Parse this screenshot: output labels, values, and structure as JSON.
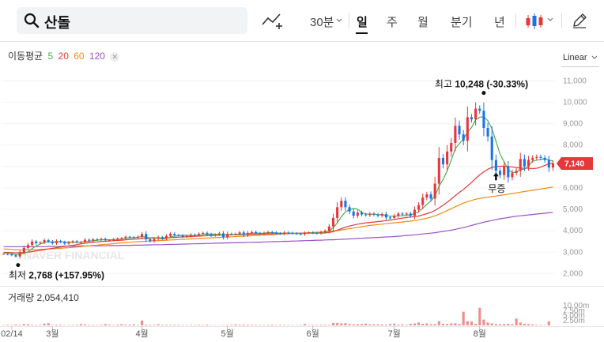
{
  "search": {
    "query": "산돌"
  },
  "periods": [
    "30분",
    "일",
    "주",
    "월",
    "분기",
    "년"
  ],
  "active_period": "일",
  "ma_legend": {
    "label": "이동평균",
    "periods": [
      "5",
      "20",
      "60",
      "120"
    ]
  },
  "colors": {
    "up": "#e5383b",
    "down": "#1a73e8",
    "ma5": "#4caf50",
    "ma20": "#e53935",
    "ma60": "#ef8a17",
    "ma120": "#9c4fc7",
    "volume": "#f28b8b",
    "badge": "#e5383b"
  },
  "scale_label": "Linear",
  "volume_legend": {
    "label": "거래량",
    "value": "2,054,410"
  },
  "watermark": "NAVER FINANCIAL",
  "chart_data": {
    "type": "candlestick",
    "title": "산돌",
    "y_ticks": [
      "11,000",
      "10,000",
      "9,000",
      "8,000",
      "7,000",
      "6,000",
      "5,000",
      "4,000",
      "3,000",
      "2,000"
    ],
    "y_tick_values": [
      11000,
      10000,
      9000,
      8000,
      7000,
      6000,
      5000,
      4000,
      3000,
      2000
    ],
    "ylim": [
      1500,
      11600
    ],
    "x_labels": [
      "02/14",
      "3월",
      "4월",
      "5월",
      "6월",
      "7월",
      "8월"
    ],
    "x_label_index": [
      2,
      12,
      34,
      55,
      76,
      96,
      117
    ],
    "days_total": 136,
    "volume_ticks": [
      "10.00m",
      "7.50m",
      "5.00m",
      "2.50m"
    ],
    "volume_tick_values": [
      10000000,
      7500000,
      5000000,
      2500000
    ],
    "volume_max": 10500000,
    "last_price": "7,140",
    "last_value": 7140,
    "high": {
      "label": "최고",
      "value": "10,248",
      "change": "(-30.33%)",
      "day": 118,
      "price": 10248
    },
    "low": {
      "label": "최저",
      "value": "2,768",
      "change": "(+157.95%)",
      "day": 2,
      "price": 2768
    },
    "event": {
      "label": "무증",
      "day": 121,
      "price": 6800
    },
    "closes": [
      2920,
      2900,
      2860,
      2800,
      3000,
      3200,
      3340,
      3500,
      3420,
      3460,
      3560,
      3500,
      3420,
      3520,
      3470,
      3400,
      3460,
      3510,
      3460,
      3480,
      3580,
      3540,
      3600,
      3580,
      3620,
      3560,
      3560,
      3600,
      3640,
      3660,
      3720,
      3700,
      3680,
      3720,
      3850,
      3600,
      3520,
      3620,
      3700,
      3640,
      3760,
      3860,
      3800,
      3780,
      3730,
      3760,
      3820,
      3800,
      3860,
      3900,
      3840,
      3780,
      3820,
      3880,
      3700,
      3860,
      3840,
      3860,
      3920,
      3800,
      3900,
      3940,
      3890,
      3860,
      3900,
      3940,
      3920,
      3880,
      3860,
      3920,
      3900,
      3880,
      3860,
      3840,
      3900,
      3920,
      3900,
      3880,
      3940,
      4000,
      4200,
      4600,
      5100,
      5400,
      5100,
      4900,
      4700,
      4850,
      4760,
      4730,
      4800,
      4750,
      4700,
      4780,
      4620,
      4600,
      4700,
      4800,
      4760,
      4800,
      4700,
      4980,
      5200,
      5550,
      5700,
      5500,
      6200,
      7400,
      7100,
      7700,
      8100,
      8900,
      8500,
      8200,
      9300,
      9200,
      9700,
      9600,
      8800,
      8400,
      7300,
      6800,
      6600,
      7000,
      6500,
      6700,
      6800,
      7350,
      7000,
      7300,
      7400,
      7450,
      7400,
      7300,
      6950,
      7140
    ],
    "volumes": [
      150000,
      300000,
      200000,
      500000,
      300000,
      700000,
      600000,
      300000,
      200000,
      250000,
      900000,
      1100000,
      200000,
      350000,
      350000,
      150000,
      200000,
      250000,
      300000,
      700000,
      500000,
      300000,
      300000,
      200000,
      350000,
      700000,
      400000,
      200000,
      400000,
      650000,
      400000,
      400000,
      550000,
      250000,
      2500000,
      400000,
      300000,
      250000,
      600000,
      300000,
      300000,
      250000,
      300000,
      250000,
      200000,
      150000,
      250000,
      200000,
      300000,
      250000,
      400000,
      150000,
      150000,
      100000,
      150000,
      250000,
      300000,
      500000,
      350000,
      400000,
      350000,
      300000,
      250000,
      200000,
      200000,
      300000,
      350000,
      200000,
      250000,
      200000,
      200000,
      150000,
      150000,
      200000,
      700000,
      200000,
      300000,
      250000,
      300000,
      350000,
      250000,
      1200000,
      1200000,
      1000000,
      1100000,
      700000,
      600000,
      650000,
      700000,
      900000,
      600000,
      600000,
      600000,
      500000,
      400000,
      700000,
      900000,
      400000,
      500000,
      300000,
      800000,
      1000000,
      1500000,
      800000,
      1000000,
      600000,
      700000,
      2200000,
      800000,
      700000,
      1000000,
      1100000,
      700000,
      7000000,
      2200000,
      2000000,
      800000,
      9000000,
      3000000,
      1500000,
      1000000,
      700000,
      600000,
      700000,
      800000,
      600000,
      3500000,
      1500000,
      800000,
      700000,
      500000,
      300000,
      300000,
      200000,
      2100000
    ],
    "ma5": [
      2960,
      2960,
      2930,
      2890,
      2900,
      2950,
      3020,
      3170,
      3290,
      3380,
      3450,
      3490,
      3470,
      3490,
      3490,
      3480,
      3470,
      3470,
      3470,
      3460,
      3500,
      3510,
      3530,
      3560,
      3580,
      3580,
      3580,
      3590,
      3600,
      3610,
      3650,
      3660,
      3680,
      3700,
      3730,
      3700,
      3670,
      3680,
      3660,
      3620,
      3640,
      3720,
      3750,
      3770,
      3790,
      3790,
      3790,
      3770,
      3790,
      3830,
      3840,
      3840,
      3840,
      3820,
      3800,
      3820,
      3810,
      3830,
      3840,
      3840,
      3860,
      3890,
      3890,
      3880,
      3890,
      3910,
      3910,
      3900,
      3890,
      3890,
      3890,
      3880,
      3870,
      3870,
      3880,
      3890,
      3890,
      3890,
      3910,
      3930,
      3990,
      4140,
      4370,
      4660,
      4880,
      4990,
      5040,
      5010,
      4860,
      4790,
      4770,
      4780,
      4750,
      4750,
      4710,
      4680,
      4680,
      4700,
      4700,
      4730,
      4740,
      4810,
      4890,
      5050,
      5230,
      5390,
      5630,
      6070,
      6390,
      6800,
      7300,
      7840,
      8060,
      8280,
      8600,
      8820,
      9180,
      9300,
      9320,
      9140,
      8760,
      8180,
      7580,
      7220,
      6840,
      6720,
      6720,
      6870,
      6870,
      7030,
      7250,
      7300,
      7320,
      7380,
      7310,
      7250
    ],
    "ma20": [
      3000,
      2990,
      2980,
      2970,
      2980,
      2990,
      3000,
      3030,
      3060,
      3090,
      3120,
      3150,
      3180,
      3210,
      3240,
      3270,
      3290,
      3320,
      3350,
      3390,
      3420,
      3440,
      3460,
      3480,
      3500,
      3510,
      3520,
      3540,
      3550,
      3560,
      3580,
      3590,
      3610,
      3620,
      3640,
      3640,
      3650,
      3660,
      3670,
      3660,
      3670,
      3680,
      3690,
      3700,
      3710,
      3720,
      3730,
      3740,
      3750,
      3760,
      3770,
      3780,
      3790,
      3800,
      3800,
      3810,
      3810,
      3820,
      3820,
      3830,
      3830,
      3840,
      3840,
      3850,
      3850,
      3860,
      3860,
      3870,
      3870,
      3880,
      3880,
      3880,
      3880,
      3880,
      3880,
      3890,
      3890,
      3890,
      3890,
      3900,
      3920,
      3960,
      4030,
      4100,
      4170,
      4220,
      4270,
      4310,
      4340,
      4370,
      4390,
      4410,
      4430,
      4450,
      4480,
      4500,
      4530,
      4560,
      4590,
      4620,
      4640,
      4660,
      4690,
      4740,
      4800,
      4860,
      4950,
      5070,
      5190,
      5330,
      5480,
      5640,
      5790,
      5930,
      6090,
      6260,
      6440,
      6610,
      6750,
      6870,
      6960,
      7000,
      7010,
      7020,
      7000,
      6980,
      6950,
      6930,
      6920,
      6920,
      6900,
      6920,
      6970,
      7050,
      7120,
      7150
    ],
    "ma60": [
      3150,
      3140,
      3130,
      3120,
      3110,
      3110,
      3110,
      3120,
      3120,
      3130,
      3140,
      3150,
      3160,
      3170,
      3180,
      3200,
      3210,
      3230,
      3240,
      3260,
      3280,
      3290,
      3310,
      3330,
      3350,
      3370,
      3380,
      3400,
      3420,
      3430,
      3450,
      3460,
      3480,
      3490,
      3500,
      3510,
      3520,
      3530,
      3540,
      3550,
      3560,
      3570,
      3580,
      3590,
      3600,
      3610,
      3620,
      3630,
      3640,
      3650,
      3660,
      3670,
      3680,
      3690,
      3700,
      3710,
      3720,
      3730,
      3740,
      3750,
      3760,
      3770,
      3780,
      3790,
      3800,
      3810,
      3820,
      3830,
      3840,
      3850,
      3860,
      3870,
      3880,
      3890,
      3900,
      3910,
      3920,
      3930,
      3940,
      3950,
      3970,
      3990,
      4010,
      4040,
      4070,
      4100,
      4130,
      4160,
      4190,
      4220,
      4250,
      4270,
      4290,
      4310,
      4330,
      4350,
      4370,
      4390,
      4410,
      4430,
      4450,
      4480,
      4510,
      4550,
      4590,
      4640,
      4700,
      4770,
      4850,
      4940,
      5030,
      5120,
      5210,
      5290,
      5360,
      5420,
      5470,
      5510,
      5540,
      5570,
      5600,
      5620,
      5650,
      5680,
      5710,
      5740,
      5770,
      5800,
      5830,
      5860,
      5890,
      5920,
      5950,
      5980,
      6010,
      6040
    ],
    "ma120": [
      3260,
      3260,
      3260,
      3260,
      3260,
      3260,
      3260,
      3260,
      3260,
      3260,
      3260,
      3270,
      3270,
      3270,
      3270,
      3280,
      3280,
      3280,
      3280,
      3290,
      3290,
      3290,
      3290,
      3300,
      3300,
      3300,
      3310,
      3310,
      3310,
      3320,
      3320,
      3320,
      3330,
      3330,
      3330,
      3340,
      3340,
      3350,
      3350,
      3350,
      3360,
      3360,
      3370,
      3370,
      3380,
      3380,
      3390,
      3390,
      3400,
      3400,
      3410,
      3410,
      3420,
      3420,
      3430,
      3430,
      3440,
      3440,
      3450,
      3450,
      3460,
      3460,
      3470,
      3470,
      3480,
      3480,
      3490,
      3490,
      3500,
      3510,
      3510,
      3520,
      3520,
      3530,
      3540,
      3540,
      3550,
      3560,
      3560,
      3570,
      3580,
      3580,
      3590,
      3600,
      3610,
      3620,
      3630,
      3640,
      3650,
      3660,
      3670,
      3680,
      3690,
      3700,
      3710,
      3720,
      3730,
      3750,
      3760,
      3780,
      3790,
      3810,
      3830,
      3850,
      3870,
      3890,
      3910,
      3940,
      3970,
      4000,
      4030,
      4070,
      4110,
      4150,
      4200,
      4250,
      4300,
      4350,
      4400,
      4440,
      4480,
      4520,
      4560,
      4590,
      4620,
      4650,
      4680,
      4700,
      4720,
      4740,
      4760,
      4780,
      4800,
      4820,
      4840,
      4860
    ]
  }
}
